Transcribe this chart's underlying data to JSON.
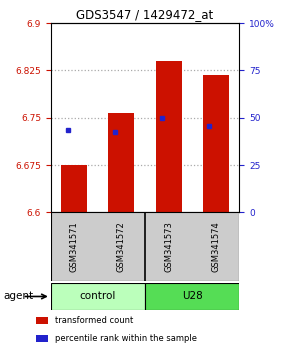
{
  "title": "GDS3547 / 1429472_at",
  "categories": [
    "GSM341571",
    "GSM341572",
    "GSM341573",
    "GSM341574"
  ],
  "bar_values": [
    6.675,
    6.757,
    6.84,
    6.818
  ],
  "bar_base": 6.6,
  "percentile_values": [
    6.73,
    6.728,
    6.75,
    6.737
  ],
  "ylim_left": [
    6.6,
    6.9
  ],
  "ylim_right": [
    0,
    100
  ],
  "yticks_left": [
    6.6,
    6.675,
    6.75,
    6.825,
    6.9
  ],
  "ytick_labels_left": [
    "6.6",
    "6.675",
    "6.75",
    "6.825",
    "6.9"
  ],
  "yticks_right": [
    0,
    25,
    50,
    75,
    100
  ],
  "ytick_labels_right": [
    "0",
    "25",
    "50",
    "75",
    "100%"
  ],
  "bar_color": "#cc1100",
  "dot_color": "#2222cc",
  "groups": [
    {
      "label": "control",
      "indices": [
        0,
        1
      ],
      "color": "#bbffbb"
    },
    {
      "label": "U28",
      "indices": [
        2,
        3
      ],
      "color": "#55dd55"
    }
  ],
  "agent_label": "agent",
  "left_tick_color": "#cc1100",
  "right_tick_color": "#2222cc",
  "grid_color": "#aaaaaa",
  "bar_width": 0.55,
  "legend_items": [
    {
      "label": "transformed count",
      "color": "#cc1100"
    },
    {
      "label": "percentile rank within the sample",
      "color": "#2222cc"
    }
  ],
  "bg_color": "#ffffff"
}
